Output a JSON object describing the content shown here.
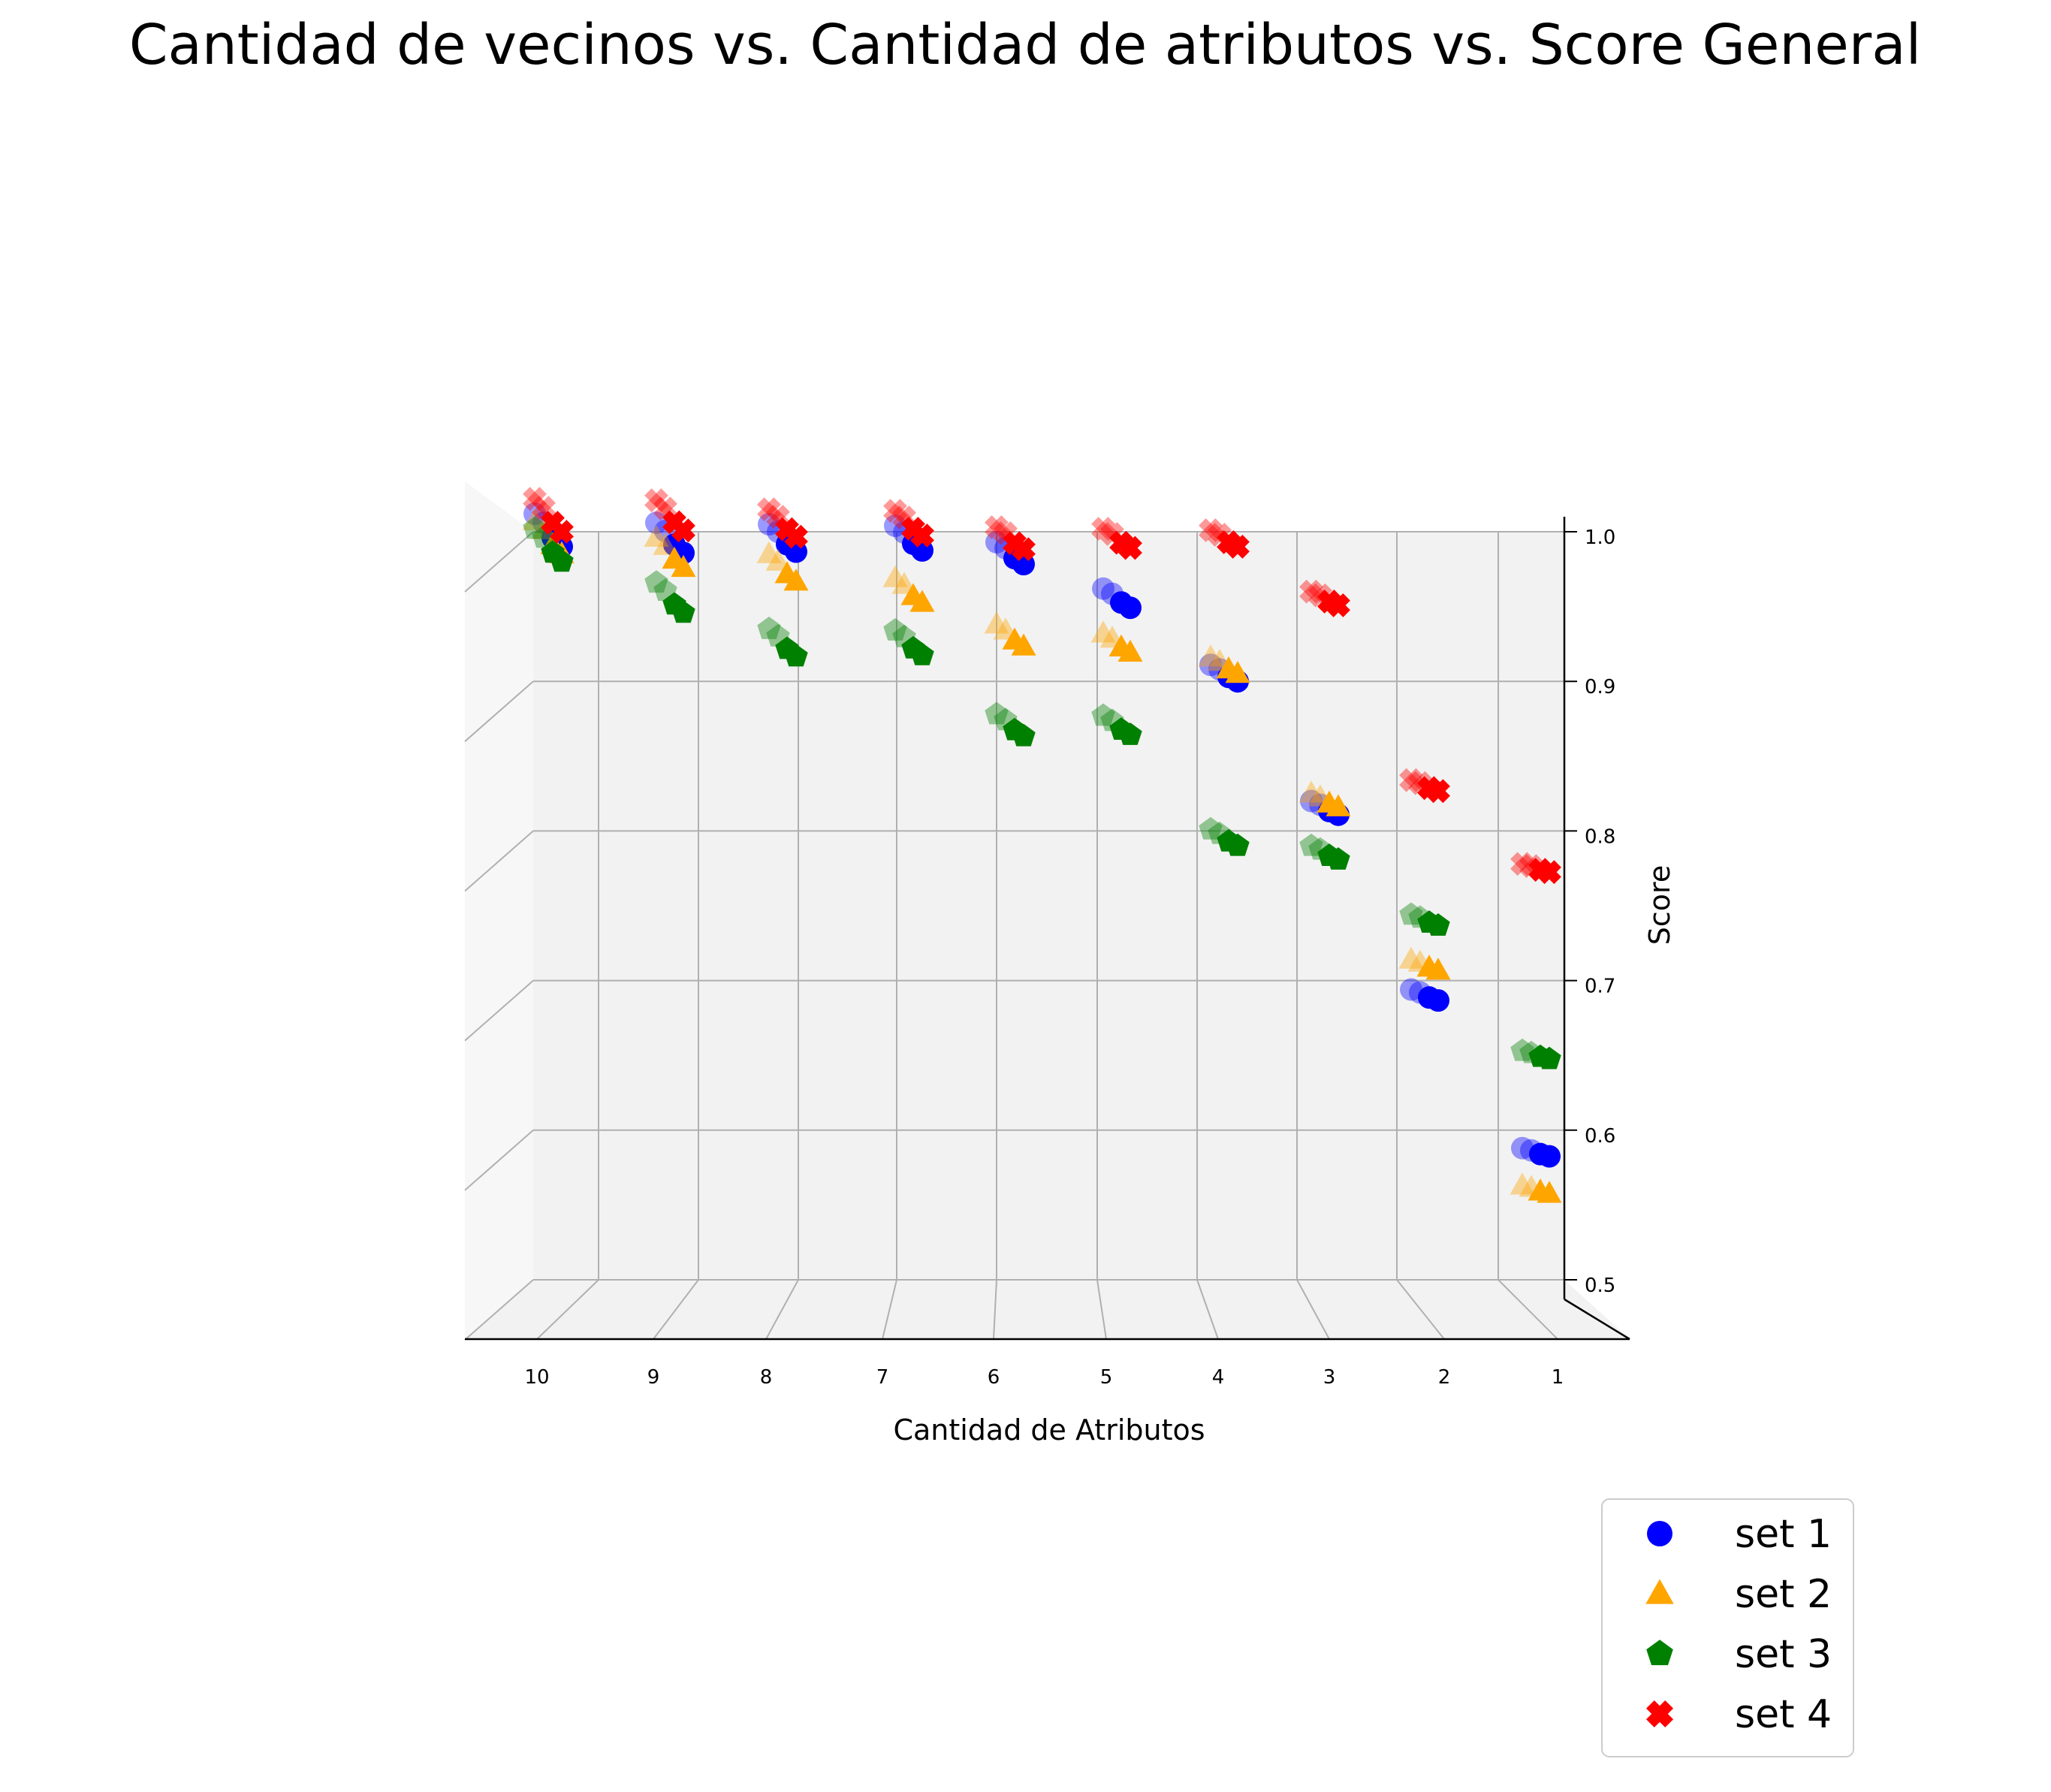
{
  "chart_data": {
    "type": "scatter",
    "projection": "3d",
    "title": "Cantidad de vecinos vs. Cantidad de atributos vs. Score General",
    "xlabel": "Cantidad de Atributos",
    "zlabel": "Score",
    "x_ticks": [
      "10",
      "9",
      "8",
      "7",
      "6",
      "5",
      "4",
      "3",
      "2",
      "1"
    ],
    "z_ticks": [
      "0.5",
      "0.6",
      "0.7",
      "0.8",
      "0.9",
      "1.0"
    ],
    "zlim": [
      0.5,
      1.0
    ],
    "grid": true,
    "legend_position": "bottom-right",
    "series": [
      {
        "name": "set 1",
        "marker": "circle",
        "color": "#0000ff",
        "values": [
          1.0,
          0.995,
          0.995,
          0.995,
          0.985,
          0.955,
          0.905,
          0.815,
          0.69,
          0.585
        ]
      },
      {
        "name": "set 2",
        "marker": "triangle",
        "color": "#ffa500",
        "values": [
          0.995,
          0.985,
          0.975,
          0.96,
          0.93,
          0.925,
          0.91,
          0.82,
          0.71,
          0.56
        ]
      },
      {
        "name": "set 3",
        "marker": "pentagon",
        "color": "#008000",
        "values": [
          0.99,
          0.955,
          0.925,
          0.925,
          0.87,
          0.87,
          0.795,
          0.785,
          0.74,
          0.65
        ]
      },
      {
        "name": "set 4",
        "marker": "x",
        "color": "#ff0000",
        "values": [
          1.01,
          1.01,
          1.005,
          1.005,
          0.995,
          0.995,
          0.995,
          0.955,
          0.83,
          0.775
        ]
      }
    ]
  }
}
